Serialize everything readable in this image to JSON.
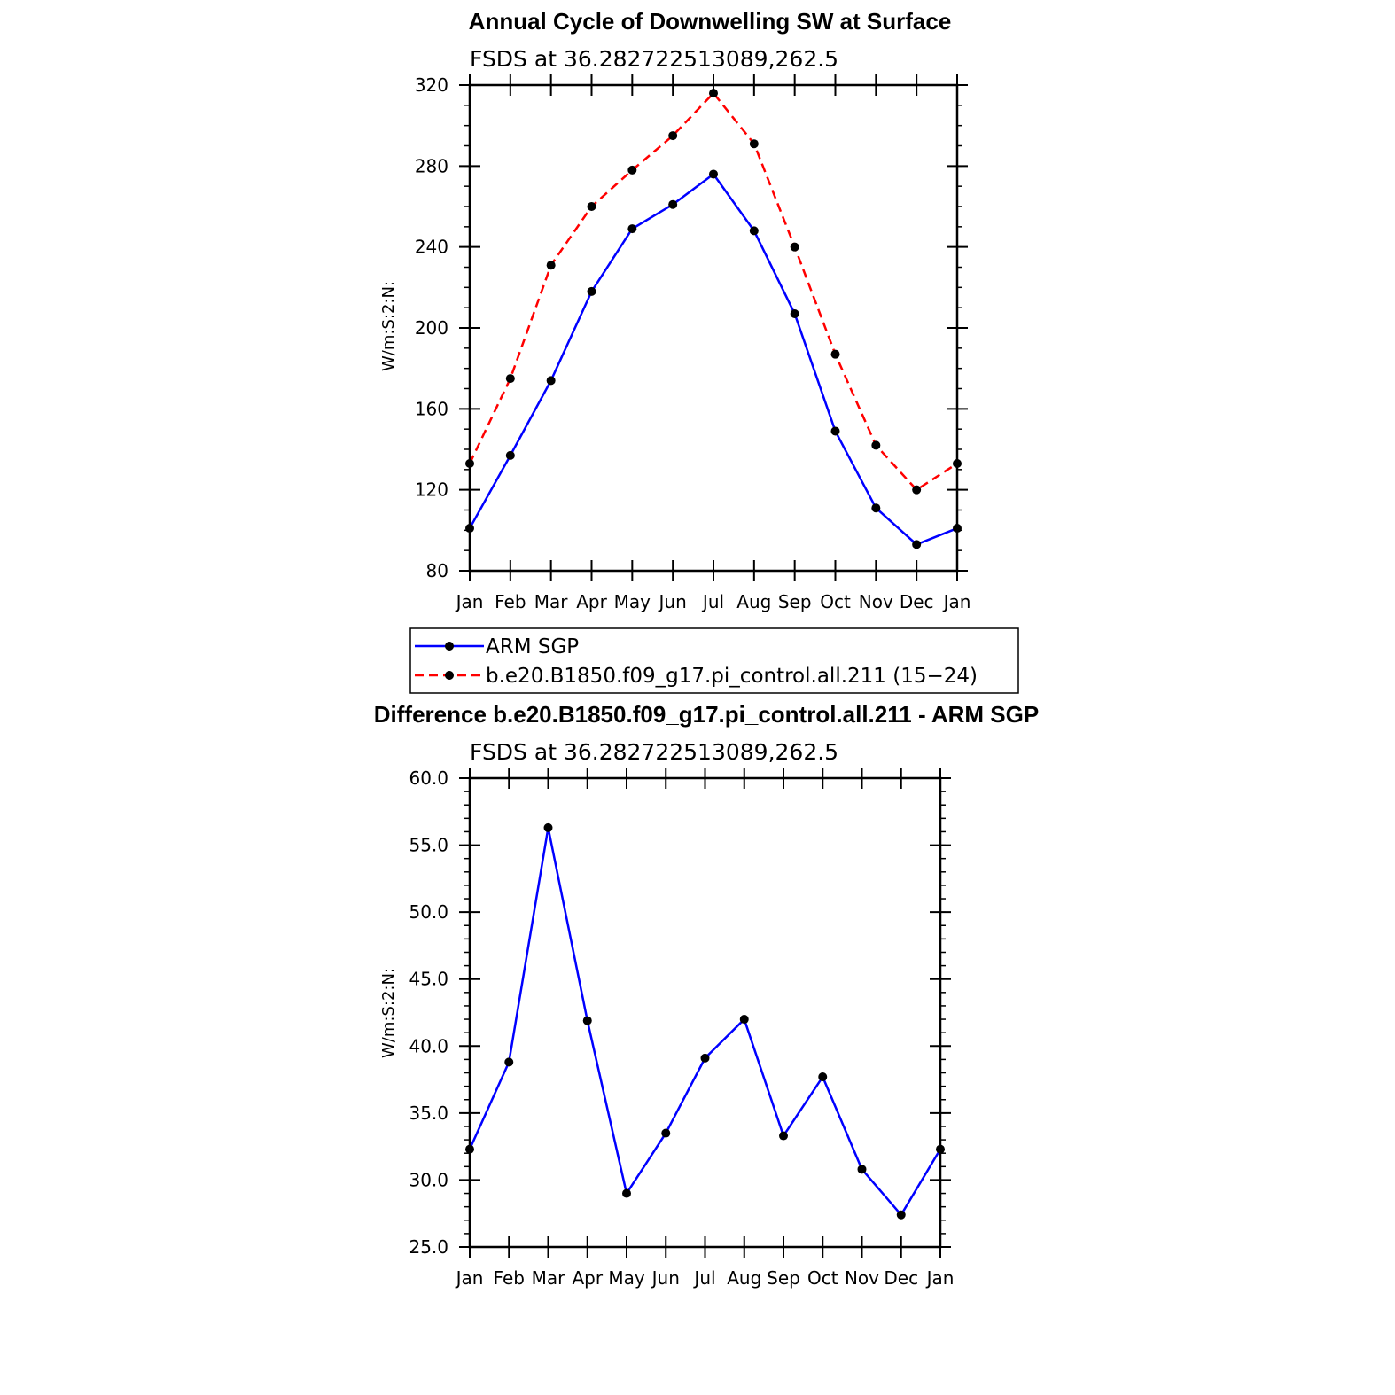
{
  "chart_data": [
    {
      "type": "line",
      "title": "Annual Cycle of Downwelling SW at Surface",
      "subtitle": "FSDS at 36.282722513089,262.5",
      "ylabel": "W/m:S:2:N:",
      "xlabel": "",
      "categories": [
        "Jan",
        "Feb",
        "Mar",
        "Apr",
        "May",
        "Jun",
        "Jul",
        "Aug",
        "Sep",
        "Oct",
        "Nov",
        "Dec",
        "Jan"
      ],
      "ylim": [
        80,
        320
      ],
      "yticks": [
        "80",
        "120",
        "160",
        "200",
        "240",
        "280",
        "320"
      ],
      "grid": false,
      "legend_position": "below",
      "series": [
        {
          "name": "ARM SGP",
          "color": "#0000ff",
          "dash": "solid",
          "values": [
            101,
            137,
            174,
            218,
            249,
            261,
            276,
            248,
            207,
            149,
            111,
            93,
            101
          ]
        },
        {
          "name": "b.e20.B1850.f09_g17.pi_control.all.211 (15−24)",
          "color": "#ff0000",
          "dash": "dashed",
          "values": [
            133,
            175,
            231,
            260,
            278,
            295,
            316,
            291,
            240,
            187,
            142,
            120,
            133
          ]
        }
      ]
    },
    {
      "type": "line",
      "title": "Difference b.e20.B1850.f09_g17.pi_control.all.211 - ARM SGP",
      "subtitle": "FSDS at 36.282722513089,262.5",
      "ylabel": "W/m:S:2:N:",
      "xlabel": "",
      "categories": [
        "Jan",
        "Feb",
        "Mar",
        "Apr",
        "May",
        "Jun",
        "Jul",
        "Aug",
        "Sep",
        "Oct",
        "Nov",
        "Dec",
        "Jan"
      ],
      "ylim": [
        25,
        60
      ],
      "yticks": [
        "25.0",
        "30.0",
        "35.0",
        "40.0",
        "45.0",
        "50.0",
        "55.0",
        "60.0"
      ],
      "grid": false,
      "series": [
        {
          "color": "#0000ff",
          "dash": "solid",
          "values": [
            32.3,
            38.8,
            56.3,
            41.9,
            29.0,
            33.5,
            39.1,
            42.0,
            33.3,
            37.7,
            30.8,
            27.4,
            32.3
          ]
        }
      ]
    }
  ]
}
